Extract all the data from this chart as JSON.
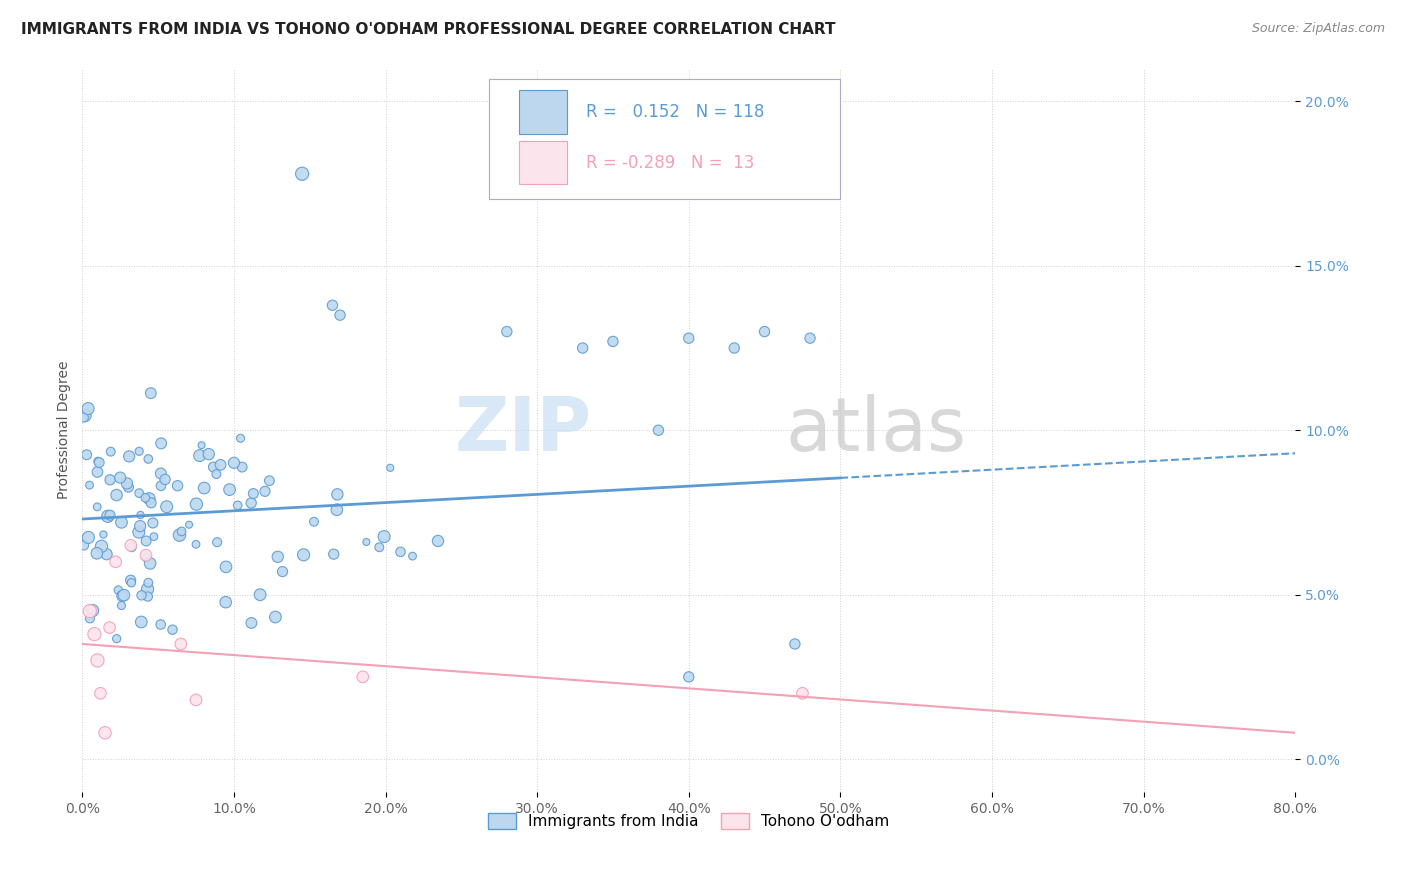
{
  "title": "IMMIGRANTS FROM INDIA VS TOHONO O'ODHAM PROFESSIONAL DEGREE CORRELATION CHART",
  "source": "Source: ZipAtlas.com",
  "ylabel": "Professional Degree",
  "xmin": 0.0,
  "xmax": 0.8,
  "ymin": -0.01,
  "ymax": 0.21,
  "xticks": [
    0.0,
    0.1,
    0.2,
    0.3,
    0.4,
    0.5,
    0.6,
    0.7,
    0.8
  ],
  "yticks": [
    0.0,
    0.05,
    0.1,
    0.15,
    0.2
  ],
  "ytick_labels": [
    "0.0%",
    "5.0%",
    "10.0%",
    "15.0%",
    "20.0%"
  ],
  "xtick_labels": [
    "0.0%",
    "10.0%",
    "20.0%",
    "30.0%",
    "40.0%",
    "50.0%",
    "60.0%",
    "70.0%",
    "80.0%"
  ],
  "blue_color": "#5b9bd5",
  "blue_fill": "#bdd7ee",
  "pink_color": "#f4a0b5",
  "pink_fill": "#fce4ec",
  "blue_label": "Immigrants from India",
  "pink_label": "Tohono O'odham",
  "blue_R": 0.152,
  "blue_N": 118,
  "pink_R": -0.289,
  "pink_N": 13,
  "watermark_zip": "ZIP",
  "watermark_atlas": "atlas",
  "background_color": "#ffffff",
  "grid_color": "#d0d0d0",
  "blue_trend_x0": 0.0,
  "blue_trend_x1": 0.8,
  "blue_trend_y0": 0.073,
  "blue_trend_y1": 0.093,
  "pink_trend_x0": 0.0,
  "pink_trend_x1": 0.8,
  "pink_trend_y0": 0.035,
  "pink_trend_y1": 0.008,
  "title_fontsize": 11,
  "source_fontsize": 9,
  "tick_fontsize": 10,
  "legend_fontsize": 12
}
